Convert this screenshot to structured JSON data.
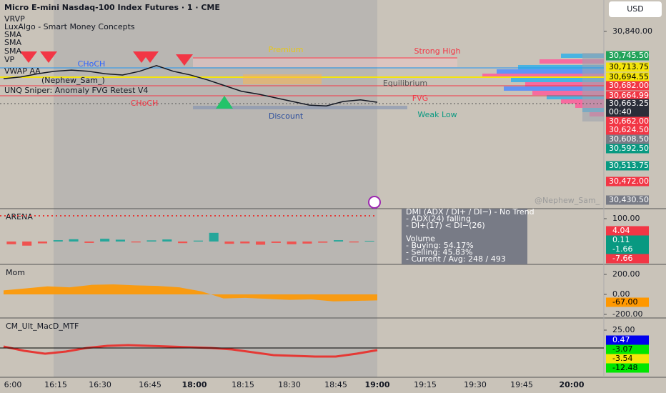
{
  "header": {
    "title": "Micro E-mini Nasdaq-100 Index Futures · 1 · CME",
    "currency": "USD"
  },
  "indicators": [
    "VRVP",
    "LuxAlgo - Smart Money Concepts",
    "SMA",
    "SMA",
    "SMA",
    "VP",
    "VWAP AA",
    "(Nephew_Sam_)",
    "UNQ Sniper: Anomaly FVG Retest V4"
  ],
  "annotations": {
    "premium": "Premium",
    "strong_high": "Strong High",
    "equilibrium": "Equilibrium",
    "discount": "Discount",
    "weak_low": "Weak Low",
    "choch_1": "CHoCH",
    "choch_2": "CHoCH",
    "fvg": "FVG"
  },
  "tooltip": [
    "DMI (ADX / DI+ / DI−)  -  No Trend",
    " - ADX(24) falling",
    " - DI+(17) < DI−(26)",
    "",
    "Volume",
    " - Buying: 54.17%",
    " - Selling: 45.83%",
    " - Current / Avg: 248 / 493"
  ],
  "watermark": "@Nephew_Sam_",
  "price_badges": [
    {
      "label": "30,745.50",
      "color": "#22a35a"
    },
    {
      "label": "30,713.75",
      "color": "#f5e50a"
    },
    {
      "label": "30,694.55",
      "color": "#f5e50a"
    },
    {
      "label": "30,682.00",
      "color": "#f23645"
    },
    {
      "label": "30,664.99",
      "color": "#f23645"
    },
    {
      "label": "30,663.25",
      "color": "#2a2e39"
    },
    {
      "label": "00:40",
      "color": "#2a2e39"
    },
    {
      "label": "30,662.00",
      "color": "#f23645"
    },
    {
      "label": "30,624.50",
      "color": "#f23645"
    },
    {
      "label": "30,608.50",
      "color": "#787b86"
    },
    {
      "label": "30,592.50",
      "color": "#089981"
    },
    {
      "label": "30,513.75",
      "color": "#089981"
    },
    {
      "label": "30,472.00",
      "color": "#f23645"
    },
    {
      "label": "30,430.50",
      "color": "#787b86"
    }
  ],
  "time_axis": [
    "6:00",
    "16:15",
    "16:30",
    "16:45",
    "18:00",
    "18:15",
    "18:30",
    "18:45",
    "19:00",
    "19:15",
    "19:30",
    "19:45",
    "20:00"
  ],
  "chart_data": [
    {
      "type": "line",
      "color": "#131722",
      "ylim": [
        30405,
        30917
      ],
      "yticks": [
        {
          "value": 30840,
          "label": "30,840.00"
        }
      ],
      "values": [
        30724,
        30728,
        30736,
        30742,
        30745,
        30742,
        30736,
        30733,
        30742,
        30756,
        30742,
        30733,
        30721,
        30707,
        30693,
        30686,
        30677,
        30668,
        30659,
        30657,
        30668,
        30672,
        30666
      ]
    },
    {
      "type": "bar",
      "title": "ARENA",
      "ylim": [
        -100,
        143.75
      ],
      "yticks": [
        {
          "value": 100,
          "label": "100.00"
        }
      ],
      "color": "#26a69a",
      "negative_color": "#ef5350",
      "values": [
        -12,
        -18,
        -8,
        6,
        10,
        -6,
        12,
        8,
        -4,
        5,
        9,
        -7,
        4,
        38,
        -10,
        -8,
        -14,
        -6,
        -12,
        -9,
        -5,
        6,
        -4,
        3
      ],
      "badges": [
        {
          "label": "4.04",
          "color": "#f23645"
        },
        {
          "label": "0.11",
          "color": "#089981"
        },
        {
          "label": "-1.66",
          "color": "#089981"
        },
        {
          "label": "-7.66",
          "color": "#f23645"
        }
      ]
    },
    {
      "type": "area",
      "title": "Mom",
      "ylim": [
        -236,
        300
      ],
      "yticks": [
        {
          "value": 200,
          "label": "200.00"
        },
        {
          "value": 0,
          "label": "0.00"
        },
        {
          "value": -200,
          "label": "-200.00"
        }
      ],
      "color": "#ff9800",
      "values": [
        40,
        60,
        80,
        70,
        95,
        100,
        90,
        85,
        70,
        30,
        -40,
        -35,
        -45,
        -55,
        -50,
        -70,
        -65,
        -60
      ],
      "badges": [
        {
          "label": "-67.00",
          "color": "#ff9800"
        }
      ]
    },
    {
      "type": "line",
      "title": "CM_Ult_MacD_MTF",
      "ylim": [
        -41,
        42
      ],
      "yticks": [
        {
          "value": 25,
          "label": "25.00"
        }
      ],
      "color": "#e53935",
      "values": [
        2,
        -4,
        -8,
        -5,
        0,
        3,
        4,
        3,
        2,
        1,
        0,
        -2,
        -6,
        -10,
        -11,
        -12,
        -12,
        -8,
        -3
      ],
      "badges": [
        {
          "label": "0.47",
          "color": "#0000ee"
        },
        {
          "label": "-3.07",
          "color": "#00e600"
        },
        {
          "label": "-3.54",
          "color": "#f5e50a"
        },
        {
          "label": "-12.48",
          "color": "#00e600"
        }
      ]
    }
  ]
}
